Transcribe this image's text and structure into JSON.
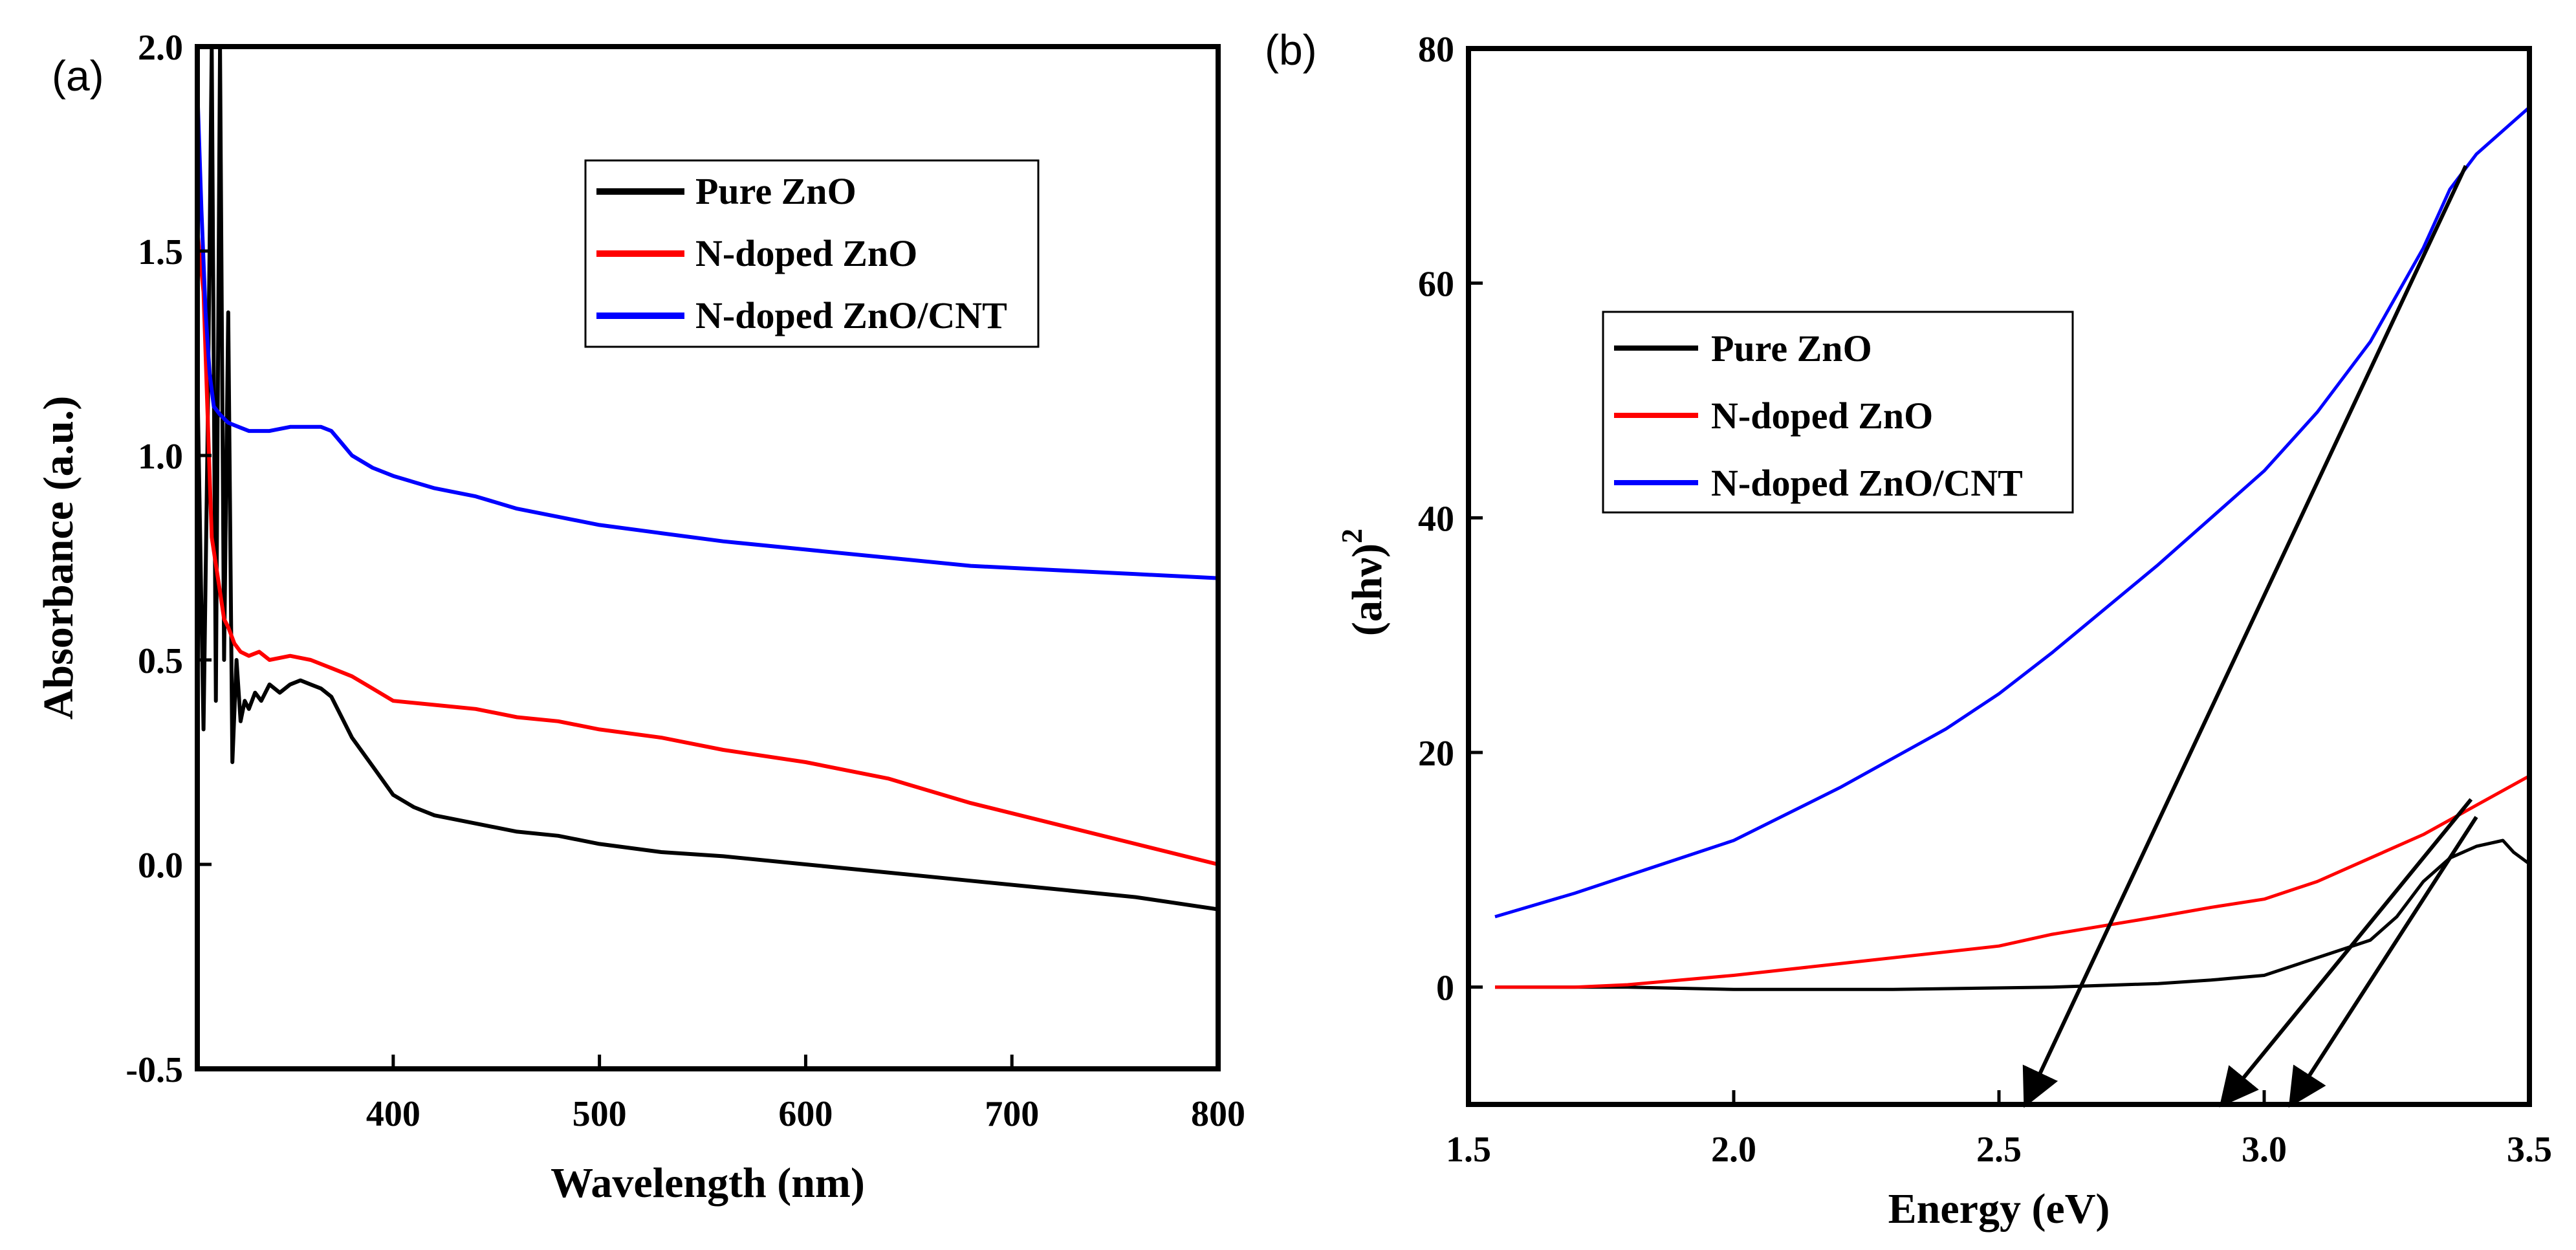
{
  "chart_data": [
    {
      "id": "a",
      "type": "line",
      "panel_label": "(a)",
      "xlabel": "Wavelength (nm)",
      "ylabel": "Absorbance (a.u.)",
      "xlim": [
        305,
        800
      ],
      "ylim": [
        -0.5,
        2.0
      ],
      "xticks": [
        400,
        500,
        600,
        700,
        800
      ],
      "yticks": [
        -0.5,
        0.0,
        0.5,
        1.0,
        1.5,
        2.0
      ],
      "xtick_labels": [
        "400",
        "500",
        "600",
        "700",
        "800"
      ],
      "ytick_labels": [
        "-0.5",
        "0.0",
        "0.5",
        "1.0",
        "1.5",
        "2.0"
      ],
      "legend_position": "top-right",
      "series": [
        {
          "name": "Pure ZnO",
          "color": "#000000",
          "x": [
            305,
            308,
            310,
            312,
            314,
            316,
            318,
            320,
            322,
            324,
            326,
            328,
            330,
            333,
            336,
            340,
            345,
            350,
            355,
            360,
            365,
            370,
            375,
            380,
            390,
            400,
            410,
            420,
            440,
            460,
            480,
            500,
            530,
            560,
            600,
            640,
            680,
            720,
            760,
            800
          ],
          "y": [
            1.2,
            0.33,
            1.05,
            2.0,
            0.4,
            2.0,
            0.5,
            1.35,
            0.25,
            0.5,
            0.35,
            0.4,
            0.38,
            0.42,
            0.4,
            0.44,
            0.42,
            0.44,
            0.45,
            0.44,
            0.43,
            0.41,
            0.36,
            0.31,
            0.24,
            0.17,
            0.14,
            0.12,
            0.1,
            0.08,
            0.07,
            0.05,
            0.03,
            0.02,
            0.0,
            -0.02,
            -0.04,
            -0.06,
            -0.08,
            -0.11
          ]
        },
        {
          "name": "N-doped ZnO",
          "color": "#ff0000",
          "x": [
            305,
            308,
            310,
            312,
            315,
            318,
            320,
            323,
            326,
            330,
            335,
            340,
            350,
            360,
            370,
            380,
            390,
            400,
            420,
            440,
            460,
            480,
            500,
            530,
            560,
            600,
            640,
            680,
            720,
            760,
            800
          ],
          "y": [
            1.55,
            1.4,
            1.1,
            0.8,
            0.7,
            0.6,
            0.58,
            0.54,
            0.52,
            0.51,
            0.52,
            0.5,
            0.51,
            0.5,
            0.48,
            0.46,
            0.43,
            0.4,
            0.39,
            0.38,
            0.36,
            0.35,
            0.33,
            0.31,
            0.28,
            0.25,
            0.21,
            0.15,
            0.1,
            0.05,
            0.0
          ]
        },
        {
          "name": "N-doped ZnO/CNT",
          "color": "#0000ff",
          "x": [
            305,
            307,
            309,
            311,
            313,
            316,
            320,
            325,
            330,
            340,
            350,
            360,
            365,
            370,
            375,
            380,
            390,
            400,
            420,
            440,
            460,
            480,
            500,
            530,
            560,
            600,
            640,
            680,
            720,
            760,
            800
          ],
          "y": [
            1.9,
            1.6,
            1.35,
            1.2,
            1.12,
            1.1,
            1.08,
            1.07,
            1.06,
            1.06,
            1.07,
            1.07,
            1.07,
            1.06,
            1.03,
            1.0,
            0.97,
            0.95,
            0.92,
            0.9,
            0.87,
            0.85,
            0.83,
            0.81,
            0.79,
            0.77,
            0.75,
            0.73,
            0.72,
            0.71,
            0.7
          ]
        }
      ]
    },
    {
      "id": "b",
      "type": "line",
      "panel_label": "(b)",
      "xlabel": "Energy (eV)",
      "ylabel_main": "(ahν)",
      "ylabel_sup": "2",
      "xlim": [
        1.5,
        3.5
      ],
      "ylim": [
        -10,
        80
      ],
      "xticks": [
        1.5,
        2.0,
        2.5,
        3.0,
        3.5
      ],
      "yticks": [
        0,
        20,
        40,
        60,
        80
      ],
      "xtick_labels": [
        "1.5",
        "2.0",
        "2.5",
        "3.0",
        "3.5"
      ],
      "ytick_labels": [
        "0",
        "20",
        "40",
        "60",
        "80"
      ],
      "legend_position": "middle-left",
      "series": [
        {
          "name": "Pure ZnO",
          "color": "#000000",
          "x": [
            1.55,
            1.8,
            2.0,
            2.3,
            2.6,
            2.8,
            2.9,
            3.0,
            3.1,
            3.2,
            3.25,
            3.3,
            3.35,
            3.4,
            3.45,
            3.47,
            3.5
          ],
          "y": [
            0,
            0,
            -0.2,
            -0.2,
            0,
            0.3,
            0.6,
            1,
            2.5,
            4,
            6,
            9,
            11,
            12,
            12.5,
            11.5,
            10.5
          ]
        },
        {
          "name": "N-doped ZnO",
          "color": "#ff0000",
          "x": [
            1.55,
            1.7,
            1.8,
            2.0,
            2.2,
            2.4,
            2.5,
            2.6,
            2.8,
            2.9,
            3.0,
            3.1,
            3.2,
            3.3,
            3.4,
            3.5
          ],
          "y": [
            0,
            0,
            0.2,
            1,
            2,
            3,
            3.5,
            4.5,
            6,
            6.8,
            7.5,
            9,
            11,
            13,
            15.5,
            18
          ]
        },
        {
          "name": "N-doped ZnO/CNT",
          "color": "#0000ff",
          "x": [
            1.55,
            1.7,
            1.8,
            2.0,
            2.2,
            2.4,
            2.5,
            2.6,
            2.8,
            3.0,
            3.1,
            3.2,
            3.3,
            3.35,
            3.4,
            3.5
          ],
          "y": [
            6,
            8,
            9.5,
            12.5,
            17,
            22,
            25,
            28.5,
            36,
            44,
            49,
            55,
            63,
            68,
            71,
            75
          ]
        }
      ],
      "tangent_arrows": [
        {
          "for": "N-doped ZnO/CNT",
          "from": [
            3.38,
            70
          ],
          "to": [
            2.55,
            -10
          ]
        },
        {
          "for": "N-doped ZnO",
          "from": [
            3.39,
            16
          ],
          "to": [
            2.92,
            -10
          ]
        },
        {
          "for": "Pure ZnO",
          "from": [
            3.4,
            14.5
          ],
          "to": [
            3.05,
            -10
          ]
        }
      ]
    }
  ]
}
